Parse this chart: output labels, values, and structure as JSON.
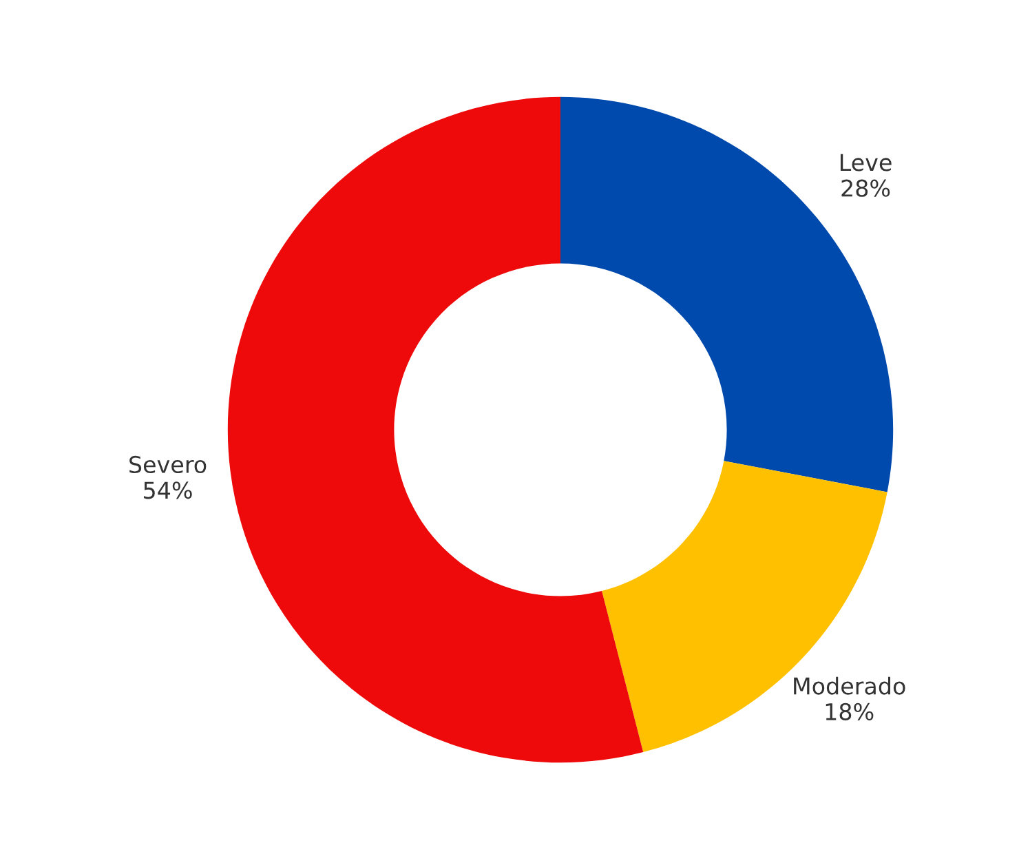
{
  "chart_data": {
    "type": "donut",
    "categories": [
      "Leve",
      "Moderado",
      "Severo"
    ],
    "values": [
      28,
      18,
      54
    ],
    "value_labels": [
      "28%",
      "18%",
      "54%"
    ],
    "colors": [
      "#004aad",
      "#ffc000",
      "#ee0a0a"
    ],
    "legend": false
  }
}
